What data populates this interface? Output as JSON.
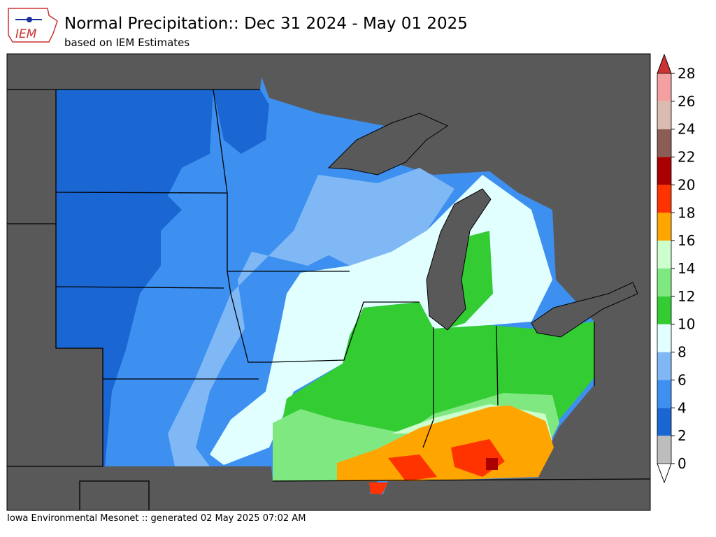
{
  "header": {
    "title": "Normal Precipitation:: Dec 31 2024 - May 01 2025",
    "subtitle": "based on IEM Estimates",
    "logo_text": "IEM"
  },
  "colorbar": {
    "ticks": [
      0,
      2,
      4,
      6,
      8,
      10,
      12,
      14,
      16,
      18,
      20,
      22,
      24,
      26,
      28
    ],
    "colors": [
      "#bdbdbd",
      "#1a66d2",
      "#3d90f0",
      "#80b8f5",
      "#e2ffff",
      "#33cc33",
      "#80e880",
      "#ccffcc",
      "#ffa500",
      "#ff3300",
      "#aa0000",
      "#8b5e55",
      "#dcbcb0",
      "#f4a0a0"
    ],
    "over_color": "#cc3333",
    "under_color": "#ffffff"
  },
  "footer": "Iowa Environmental Mesonet :: generated 02 May 2025 07:02 AM"
}
